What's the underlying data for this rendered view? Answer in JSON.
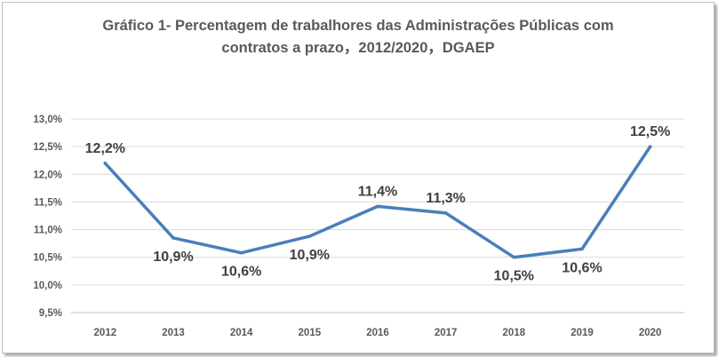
{
  "chart_data": {
    "type": "line",
    "title_lines": [
      "Gráfico 1- Percentagem de trabalhores das Administrações Públicas com",
      "contratos a prazo，2012/2020，DGAEP"
    ],
    "xlabel": "",
    "ylabel": "",
    "x": [
      "2012",
      "2013",
      "2014",
      "2015",
      "2016",
      "2017",
      "2018",
      "2019",
      "2020"
    ],
    "series": [
      {
        "values": [
          12.2,
          10.85,
          10.58,
          10.88,
          11.42,
          11.3,
          10.5,
          10.65,
          12.5
        ],
        "labels": [
          "12,2%",
          "10,9%",
          "10,6%",
          "10,9%",
          "11,4%",
          "11,3%",
          "10,5%",
          "10,6%",
          "12,5%"
        ],
        "label_position": [
          "above",
          "below",
          "below",
          "below",
          "above",
          "above",
          "below",
          "below",
          "above"
        ],
        "color": "#4a7ebb"
      }
    ],
    "ylim": [
      9.5,
      13.0
    ],
    "yticks": [
      9.5,
      10.0,
      10.5,
      11.0,
      11.5,
      12.0,
      12.5,
      13.0
    ],
    "ytick_labels": [
      "9,5%",
      "10,0%",
      "10,5%",
      "11,0%",
      "11,5%",
      "12,0%",
      "12,5%",
      "13,0%"
    ],
    "grid": true,
    "gridline_color": "#d9d9d9",
    "legend": "none"
  }
}
